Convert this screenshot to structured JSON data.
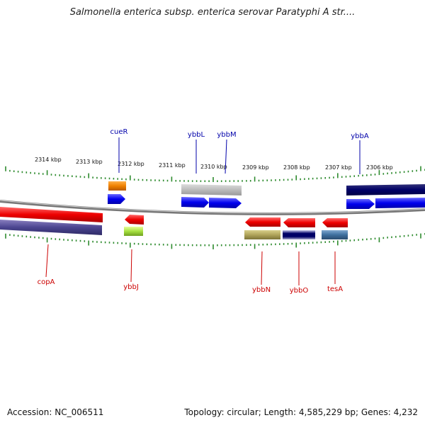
{
  "title": "Salmonella enterica subsp. enterica serovar Paratyphi A str....",
  "footer": {
    "accession": "Accession: NC_006511",
    "topology": "Topology: circular; Length: 4,585,229 bp; Genes: 4,232"
  },
  "colors": {
    "backbone": "#8a8a8a",
    "tick": "#2e8b2e",
    "top_label": "#0000aa",
    "bottom_label": "#cc0000"
  },
  "kbp_labels": [
    "2314 kbp",
    "2313 kbp",
    "2312 kbp",
    "2311 kbp",
    "2310 kbp",
    "2309 kbp",
    "2308 kbp",
    "2307 kbp",
    "2306 kbp"
  ],
  "gene_labels_top": [
    "cueR",
    "ybbL",
    "ybbM",
    "ybbA"
  ],
  "gene_labels_bottom": [
    "copA",
    "ybbJ",
    "ybbN",
    "ybbO",
    "tesA"
  ]
}
